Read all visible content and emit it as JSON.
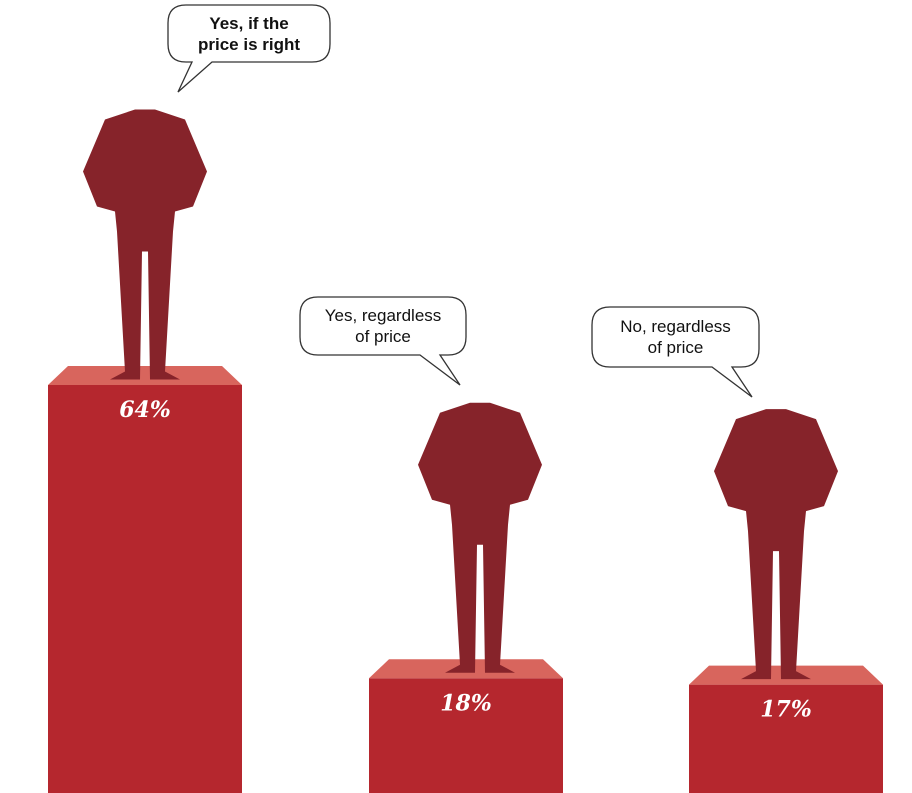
{
  "chart_data": {
    "type": "bar",
    "categories": [
      "Yes, if the\nprice is right",
      "Yes, regardless\nof price",
      "No, regardless\nof price"
    ],
    "values": [
      64,
      18,
      17
    ],
    "value_labels": [
      "64%",
      "18%",
      "17%"
    ],
    "color": "#b5272e"
  }
}
